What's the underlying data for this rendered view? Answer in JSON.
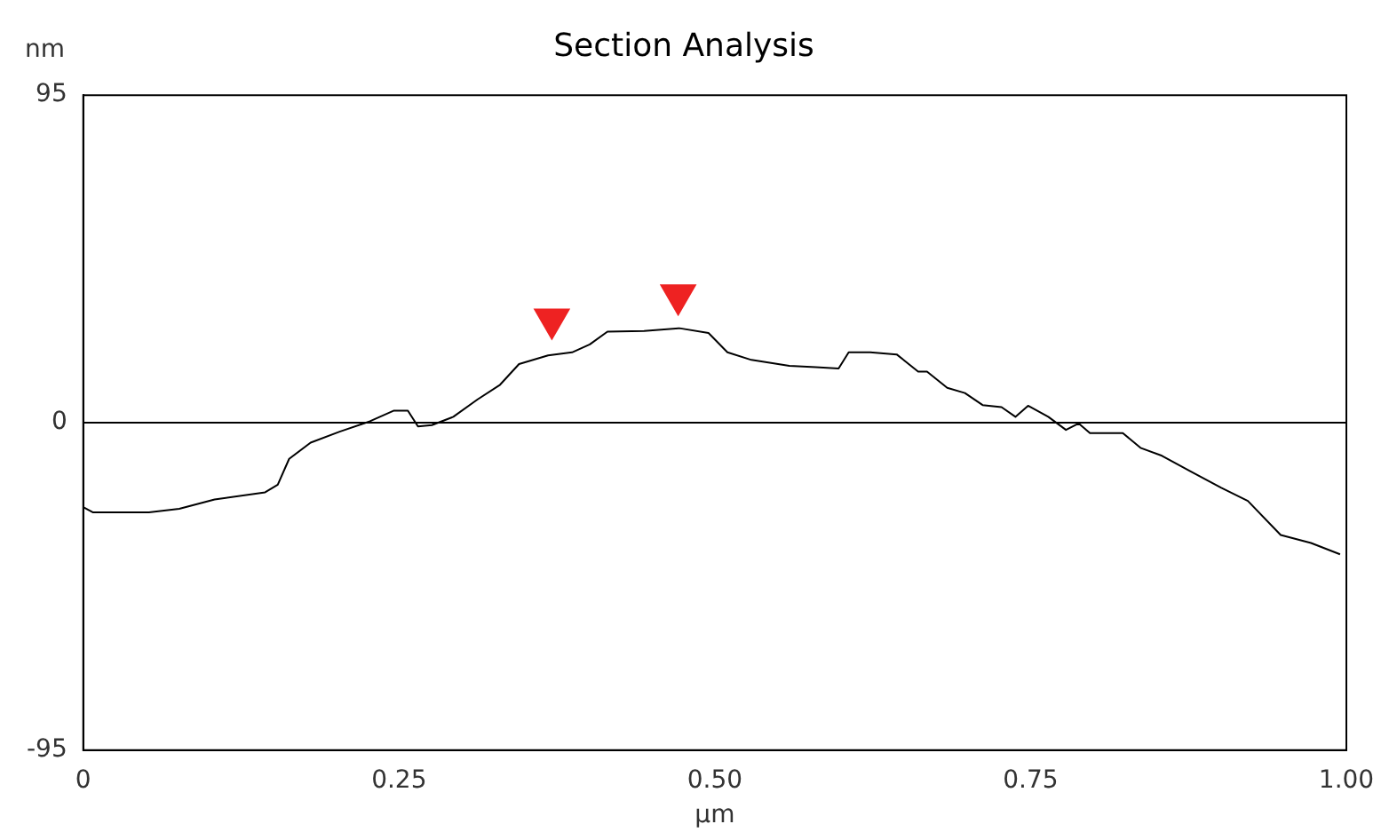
{
  "chart_data": {
    "type": "line",
    "title": "Section Analysis",
    "xlabel": "µm",
    "ylabel": "nm",
    "xlim": [
      0,
      1
    ],
    "ylim": [
      -95,
      95
    ],
    "xticks": [
      0,
      {
        "value": 0.25,
        "label": "0.25"
      },
      {
        "value": 0.5,
        "label": "0.50"
      },
      {
        "value": 0.75,
        "label": "0.75"
      },
      {
        "value": 1,
        "label": "1.00"
      }
    ],
    "yticks": [
      -95,
      0,
      95
    ],
    "grid": false,
    "legend": false,
    "marker": "none",
    "line_style": "solid",
    "ref_lines": [
      {
        "axis": "y",
        "value": 0,
        "color": "#000000"
      }
    ],
    "series": [
      {
        "color": "#000000",
        "x": [
          0,
          0.0075,
          0.052,
          0.076,
          0.104,
          0.144,
          0.154,
          0.163,
          0.18,
          0.203,
          0.227,
          0.246,
          0.257,
          0.265,
          0.276,
          0.293,
          0.312,
          0.33,
          0.345,
          0.368,
          0.387,
          0.401,
          0.415,
          0.444,
          0.472,
          0.495,
          0.51,
          0.529,
          0.559,
          0.58,
          0.598,
          0.606,
          0.623,
          0.644,
          0.661,
          0.668,
          0.684,
          0.698,
          0.712,
          0.727,
          0.738,
          0.748,
          0.764,
          0.778,
          0.788,
          0.797,
          0.823,
          0.837,
          0.854,
          0.877,
          0.901,
          0.922,
          0.948,
          0.972,
          0.995
        ],
        "values": [
          -24.5,
          -26,
          -26,
          -25,
          -22.3,
          -20.2,
          -18,
          -10.5,
          -5.8,
          -2.6,
          0.4,
          3.5,
          3.5,
          -1.1,
          -0.7,
          1.7,
          6.7,
          11,
          17,
          19.5,
          20.4,
          22.7,
          26.4,
          26.6,
          27.4,
          26,
          20.4,
          18.2,
          16.5,
          16.1,
          15.7,
          20.4,
          20.4,
          19.8,
          14.8,
          14.8,
          10.1,
          8.6,
          5.1,
          4.5,
          1.7,
          4.9,
          1.7,
          -2.1,
          -0.2,
          -3,
          -3,
          -7.3,
          -9.6,
          -14.2,
          -18.9,
          -22.7,
          -32.6,
          -34.9,
          -38.2
        ]
      },
      {
        "type": "scatter",
        "color": "#ee2222",
        "marker": "triangle",
        "x": [
          0.371,
          0.471
        ],
        "values": [
          30,
          37
        ]
      }
    ]
  }
}
